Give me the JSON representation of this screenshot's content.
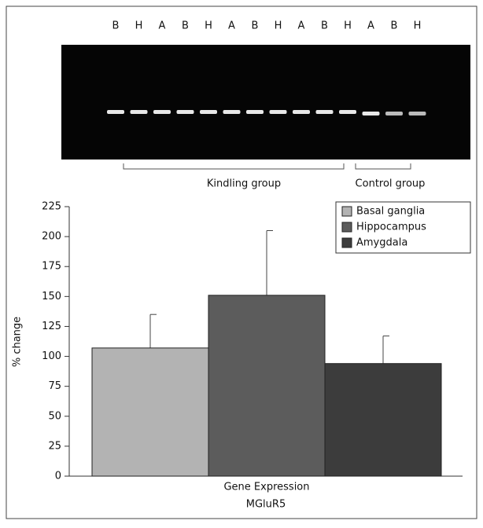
{
  "gel": {
    "lanes": [
      "B",
      "H",
      "A",
      "B",
      "H",
      "A",
      "B",
      "H",
      "A",
      "B",
      "H",
      "A",
      "B",
      "H"
    ],
    "groups": [
      "Kindling group",
      "Control group"
    ]
  },
  "chart_data": {
    "type": "bar",
    "categories": [
      "Gene Expression"
    ],
    "x_label": "MGluR5",
    "y_label": "% change",
    "ylim": [
      0,
      225
    ],
    "yticks": [
      0,
      25,
      50,
      75,
      100,
      125,
      150,
      175,
      200,
      225
    ],
    "legend": "top-right",
    "series": [
      {
        "name": "Basal ganglia",
        "color": "#b3b3b3",
        "values": [
          107
        ],
        "errors": [
          28
        ]
      },
      {
        "name": "Hippocampus",
        "color": "#5c5c5c",
        "values": [
          151
        ],
        "errors": [
          54
        ]
      },
      {
        "name": "Amygdala",
        "color": "#3c3c3c",
        "values": [
          94
        ],
        "errors": [
          23
        ]
      }
    ]
  }
}
